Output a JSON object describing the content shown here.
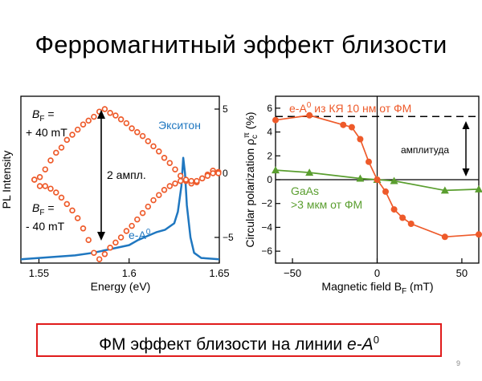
{
  "slide": {
    "title": "Ферромагнитный эффект близости",
    "caption_text": "ФМ эффект близости на линии ",
    "caption_symbol": "e-A",
    "caption_superscript": "0",
    "page_number": "9"
  },
  "colors": {
    "orange": "#ee5a2a",
    "blue": "#1f77c0",
    "green": "#5a9e2f",
    "caption_border": "#e01b1b"
  },
  "chart_data": [
    {
      "type": "scatter",
      "xlabel": "Energy (eV)",
      "ylabel": "PL Intensity",
      "xlim": [
        1.54,
        1.65
      ],
      "xticks": [
        1.55,
        1.6,
        1.65
      ],
      "x_tick_labels": [
        "1.55",
        "1.6",
        "1.65"
      ],
      "right_axis": {
        "ylim": [
          -7,
          6
        ],
        "ticks": [
          5,
          0,
          -5
        ],
        "tick_labels": [
          "5",
          "0",
          "−5"
        ]
      },
      "series": [
        {
          "name": "B_F = +40 mT",
          "style": "markers",
          "x": [
            1.5475,
            1.5505,
            1.5535,
            1.5565,
            1.5595,
            1.5625,
            1.5655,
            1.5685,
            1.5715,
            1.5745,
            1.5775,
            1.5805,
            1.5835,
            1.5865,
            1.5895,
            1.5925,
            1.5955,
            1.5985,
            1.6015,
            1.6045,
            1.6075,
            1.6105,
            1.6135,
            1.6165,
            1.6195,
            1.6225,
            1.6255,
            1.6285,
            1.6315,
            1.6345,
            1.6375,
            1.6405,
            1.6435,
            1.6465,
            1.6495
          ],
          "y": [
            -0.5,
            -0.3,
            0.3,
            1.0,
            1.6,
            2.0,
            2.6,
            3.0,
            3.4,
            3.8,
            4.1,
            4.4,
            4.8,
            5.0,
            4.7,
            4.5,
            4.2,
            3.9,
            3.5,
            3.2,
            2.9,
            2.5,
            2.1,
            1.7,
            1.2,
            0.8,
            0.3,
            -0.2,
            -0.6,
            -0.8,
            -0.7,
            -0.4,
            -0.1,
            0.2,
            0.1
          ]
        },
        {
          "name": "B_F = -40 mT",
          "style": "markers",
          "x": [
            1.5475,
            1.5505,
            1.5535,
            1.5565,
            1.5595,
            1.5625,
            1.5655,
            1.5685,
            1.5715,
            1.5745,
            1.5775,
            1.5805,
            1.5835,
            1.5865,
            1.5895,
            1.5925,
            1.5955,
            1.5985,
            1.6015,
            1.6045,
            1.6075,
            1.6105,
            1.6135,
            1.6165,
            1.6195,
            1.6225,
            1.6255,
            1.6285,
            1.6315,
            1.6345,
            1.6375,
            1.6405,
            1.6435,
            1.6465,
            1.6495
          ],
          "y": [
            -0.5,
            -1.0,
            -1.0,
            -1.2,
            -1.5,
            -1.9,
            -2.4,
            -2.9,
            -3.5,
            -4.3,
            -5.2,
            -6.2,
            -6.7,
            -6.3,
            -5.8,
            -5.4,
            -5.0,
            -4.5,
            -4.1,
            -3.6,
            -3.1,
            -2.6,
            -2.1,
            -1.7,
            -1.3,
            -1.0,
            -0.8,
            -0.6,
            -0.5,
            -0.6,
            -0.6,
            -0.4,
            -0.2,
            0.0,
            0.0
          ]
        },
        {
          "name": "e-A0 PL spectrum",
          "style": "line",
          "x": [
            1.54,
            1.55,
            1.56,
            1.57,
            1.58,
            1.59,
            1.6,
            1.605,
            1.61,
            1.615,
            1.62,
            1.625,
            1.627,
            1.629,
            1.63,
            1.631,
            1.632,
            1.634,
            1.636,
            1.64,
            1.65
          ],
          "y": [
            -6.7,
            -6.6,
            -6.5,
            -6.4,
            -6.2,
            -5.9,
            -5.6,
            -5.2,
            -4.9,
            -4.6,
            -4.4,
            -3.9,
            -3.0,
            -1.0,
            1.2,
            0.0,
            -2.5,
            -5.0,
            -6.2,
            -6.6,
            -6.7
          ]
        }
      ],
      "annotations": {
        "bplus_label": "B",
        "bplus_sub": "F",
        "bplus_eq": " =",
        "bplus_value": "+ 40 mT",
        "bminus_label": "B",
        "bminus_sub": "F",
        "bminus_eq": " =",
        "bminus_value": "- 40 mT",
        "exciton_label": "Экситон",
        "ea_label": "e-A",
        "ea_sup": "0",
        "two_ampl_label": "2 ампл."
      }
    },
    {
      "type": "line",
      "xlabel_prefix": "Magnetic field B",
      "xlabel_sub": "F",
      "xlabel_suffix": " (mT)",
      "ylabel_prefix": "Circular polarization ρ",
      "ylabel_sub": "c",
      "ylabel_sup": "π",
      "ylabel_suffix": " (%)",
      "xlim": [
        -60,
        60
      ],
      "ylim": [
        -7,
        7
      ],
      "xticks": [
        -50,
        0,
        50
      ],
      "x_tick_labels": [
        "−50",
        "0",
        "50"
      ],
      "yticks": [
        6,
        4,
        2,
        0,
        -2,
        -4,
        -6
      ],
      "y_tick_labels": [
        "6",
        "4",
        "2",
        "0",
        "−2",
        "−4",
        "−6"
      ],
      "reference_level": 5.3,
      "series": [
        {
          "name_prefix": "e-A",
          "name_sup": "0",
          "name_suffix": " из КЯ 10 нм от ФМ",
          "marker": "circle",
          "x": [
            -60,
            -40,
            -20,
            -15,
            -10,
            -5,
            0,
            5,
            10,
            15,
            20,
            40,
            60
          ],
          "y": [
            5.0,
            5.4,
            4.6,
            4.4,
            3.4,
            1.5,
            0.0,
            -1.0,
            -2.5,
            -3.2,
            -3.7,
            -4.8,
            -4.6
          ]
        },
        {
          "name_line1": "GaAs",
          "name_line2": ">3 мкм от ФМ",
          "marker": "triangle",
          "x": [
            -60,
            -40,
            -10,
            0,
            10,
            40,
            60
          ],
          "y": [
            0.8,
            0.6,
            0.1,
            0.0,
            -0.1,
            -0.9,
            -0.8
          ]
        }
      ],
      "annotations": {
        "amplitude_label": "амплитуда"
      }
    }
  ]
}
